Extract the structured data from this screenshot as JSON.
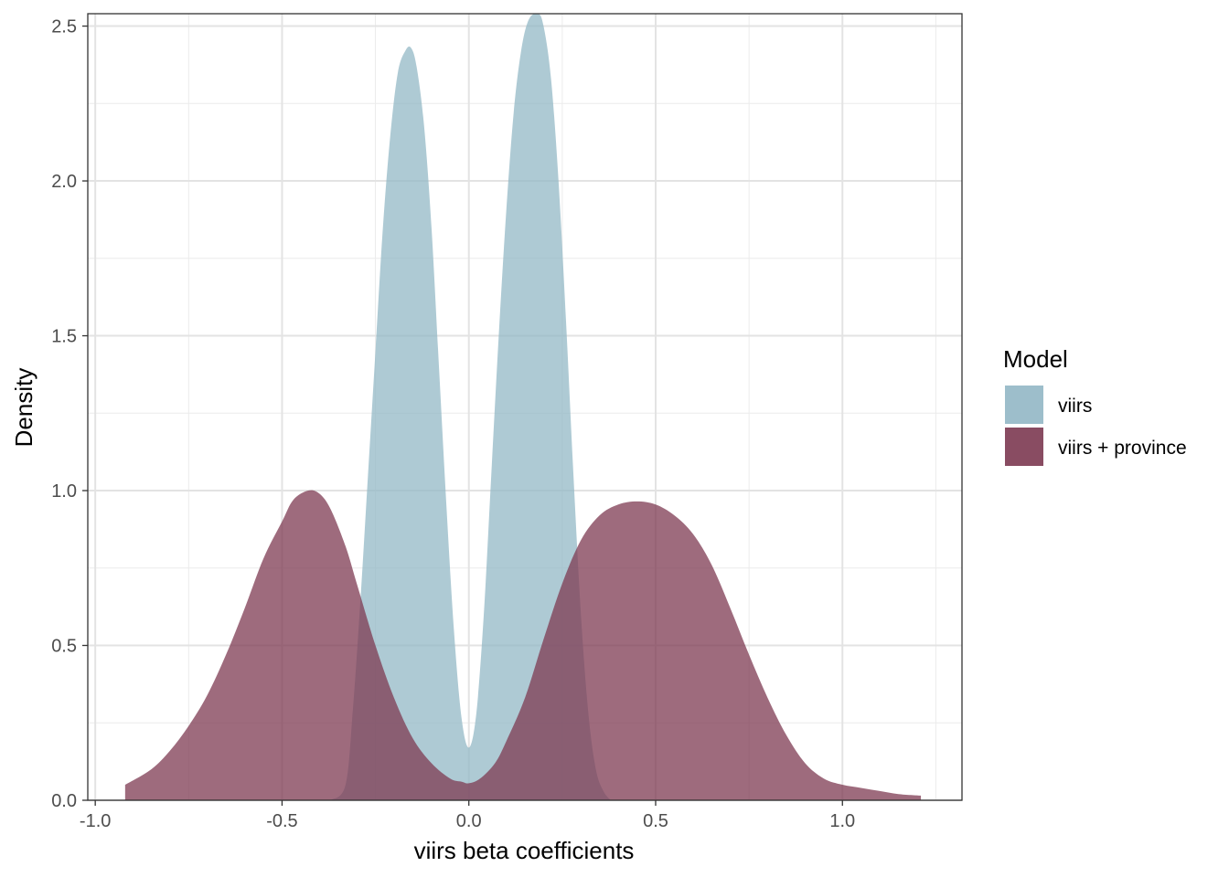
{
  "chart_data": {
    "type": "area",
    "xlabel": "viirs beta coefficients",
    "ylabel": "Density",
    "xlim": [
      -1.02,
      1.32
    ],
    "ylim": [
      0,
      2.54
    ],
    "x_ticks": [
      -1.0,
      -0.5,
      0.0,
      0.5,
      1.0
    ],
    "x_tick_labels": [
      "-1.0",
      "-0.5",
      "0.0",
      "0.5",
      "1.0"
    ],
    "y_ticks": [
      0.0,
      0.5,
      1.0,
      1.5,
      2.0,
      2.5
    ],
    "y_tick_labels": [
      "0.0",
      "0.5",
      "1.0",
      "1.5",
      "2.0",
      "2.5"
    ],
    "grid": true,
    "legend": {
      "title": "Model",
      "position": "right"
    },
    "series": [
      {
        "name": "viirs",
        "color": "#93b8c6",
        "opacity": 0.75,
        "points": [
          [
            -0.37,
            0.0
          ],
          [
            -0.33,
            0.05
          ],
          [
            -0.31,
            0.3
          ],
          [
            -0.29,
            0.65
          ],
          [
            -0.27,
            1.05
          ],
          [
            -0.25,
            1.45
          ],
          [
            -0.23,
            1.85
          ],
          [
            -0.21,
            2.15
          ],
          [
            -0.19,
            2.35
          ],
          [
            -0.17,
            2.42
          ],
          [
            -0.155,
            2.43
          ],
          [
            -0.14,
            2.37
          ],
          [
            -0.12,
            2.18
          ],
          [
            -0.1,
            1.85
          ],
          [
            -0.08,
            1.4
          ],
          [
            -0.06,
            0.95
          ],
          [
            -0.04,
            0.55
          ],
          [
            -0.02,
            0.27
          ],
          [
            0.0,
            0.17
          ],
          [
            0.02,
            0.28
          ],
          [
            0.04,
            0.6
          ],
          [
            0.06,
            1.05
          ],
          [
            0.08,
            1.5
          ],
          [
            0.1,
            1.9
          ],
          [
            0.12,
            2.22
          ],
          [
            0.14,
            2.42
          ],
          [
            0.16,
            2.52
          ],
          [
            0.185,
            2.54
          ],
          [
            0.2,
            2.5
          ],
          [
            0.22,
            2.33
          ],
          [
            0.24,
            2.0
          ],
          [
            0.26,
            1.55
          ],
          [
            0.28,
            1.05
          ],
          [
            0.3,
            0.6
          ],
          [
            0.32,
            0.28
          ],
          [
            0.34,
            0.1
          ],
          [
            0.36,
            0.03
          ],
          [
            0.38,
            0.0
          ]
        ]
      },
      {
        "name": "viirs + province",
        "color": "#7d3a52",
        "opacity": 0.75,
        "points": [
          [
            -0.92,
            0.05
          ],
          [
            -0.85,
            0.1
          ],
          [
            -0.8,
            0.16
          ],
          [
            -0.75,
            0.24
          ],
          [
            -0.7,
            0.34
          ],
          [
            -0.65,
            0.47
          ],
          [
            -0.6,
            0.62
          ],
          [
            -0.55,
            0.78
          ],
          [
            -0.5,
            0.9
          ],
          [
            -0.47,
            0.97
          ],
          [
            -0.43,
            1.0
          ],
          [
            -0.4,
            0.99
          ],
          [
            -0.37,
            0.94
          ],
          [
            -0.33,
            0.82
          ],
          [
            -0.3,
            0.7
          ],
          [
            -0.25,
            0.5
          ],
          [
            -0.2,
            0.33
          ],
          [
            -0.15,
            0.2
          ],
          [
            -0.1,
            0.12
          ],
          [
            -0.05,
            0.07
          ],
          [
            -0.02,
            0.06
          ],
          [
            0.0,
            0.055
          ],
          [
            0.03,
            0.07
          ],
          [
            0.07,
            0.12
          ],
          [
            0.1,
            0.19
          ],
          [
            0.15,
            0.33
          ],
          [
            0.2,
            0.52
          ],
          [
            0.25,
            0.7
          ],
          [
            0.3,
            0.84
          ],
          [
            0.35,
            0.92
          ],
          [
            0.4,
            0.955
          ],
          [
            0.45,
            0.965
          ],
          [
            0.5,
            0.955
          ],
          [
            0.55,
            0.92
          ],
          [
            0.6,
            0.86
          ],
          [
            0.65,
            0.76
          ],
          [
            0.7,
            0.62
          ],
          [
            0.75,
            0.47
          ],
          [
            0.8,
            0.33
          ],
          [
            0.85,
            0.21
          ],
          [
            0.9,
            0.12
          ],
          [
            0.95,
            0.07
          ],
          [
            1.0,
            0.05
          ],
          [
            1.05,
            0.04
          ],
          [
            1.1,
            0.03
          ],
          [
            1.15,
            0.02
          ],
          [
            1.21,
            0.015
          ]
        ]
      }
    ]
  }
}
